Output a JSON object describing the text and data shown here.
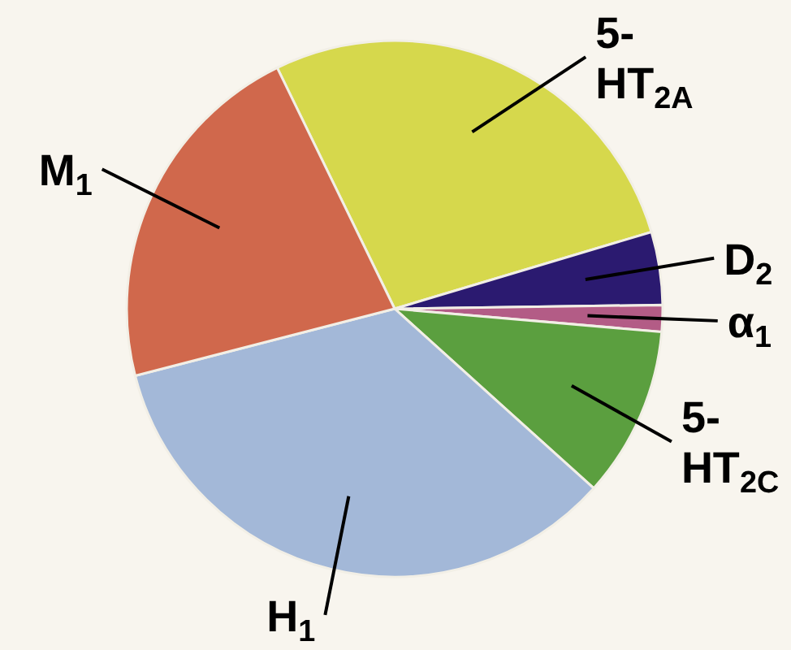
{
  "chart_data": {
    "type": "pie",
    "categories": [
      "5-HT$_{2A}$",
      "D$_{2}$",
      "α$_{1}$",
      "5-HT$_{2C}$",
      "H$_{1}$",
      "M$_{1}$"
    ],
    "values": [
      27.6,
      4.4,
      1.6,
      10.3,
      34.3,
      21.8
    ],
    "colors": [
      "#d6d84c",
      "#2b1a70",
      "#b35c86",
      "#5b9f3f",
      "#a3b8d8",
      "#d0684c"
    ]
  }
}
